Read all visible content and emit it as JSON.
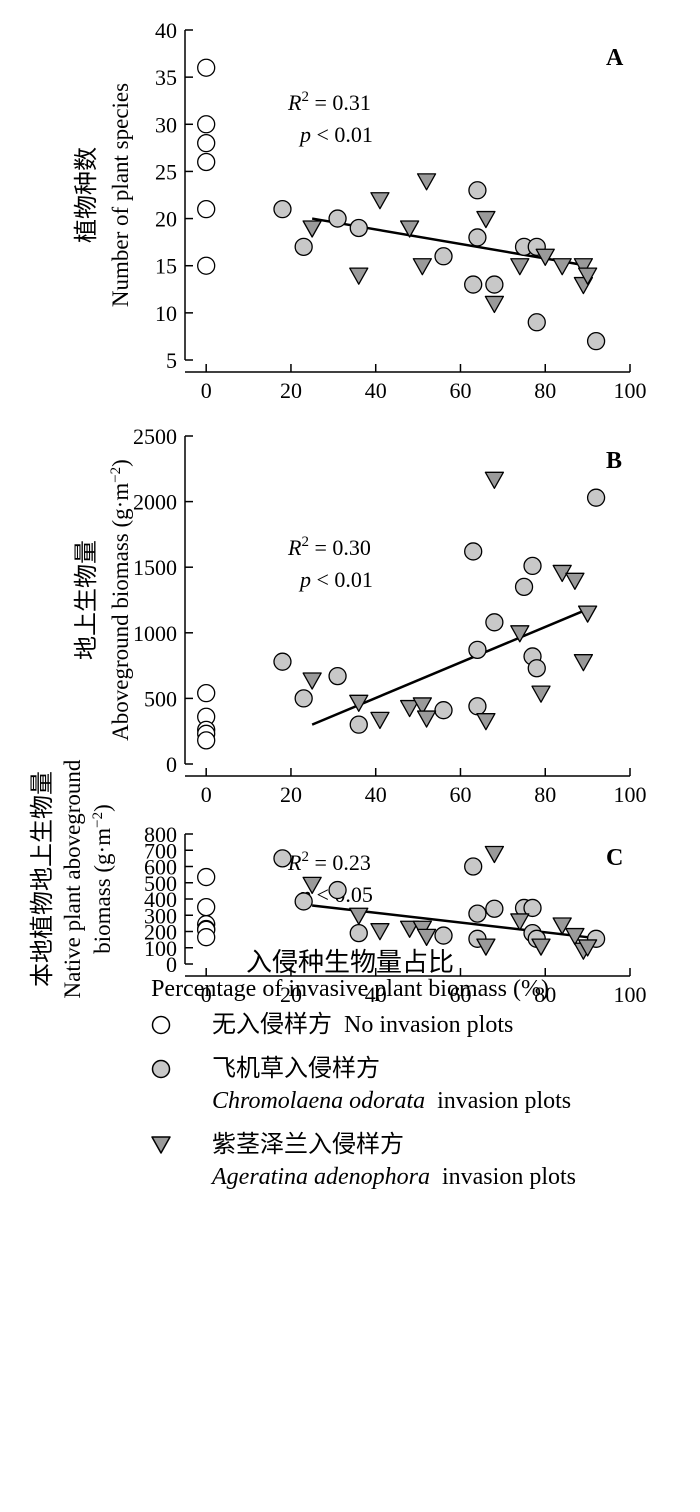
{
  "chart_data": [
    {
      "type": "scatter",
      "panel_label": "A",
      "ylabel_cn": "植物种数",
      "ylabel_en": "Number of plant species",
      "ylabel_en_sup": "",
      "ylim": [
        5,
        40
      ],
      "yticks": [
        5,
        10,
        15,
        20,
        25,
        30,
        35,
        40
      ],
      "xlim": [
        -5,
        100
      ],
      "xticks": [
        0,
        20,
        40,
        60,
        80,
        100
      ],
      "grid": false,
      "stat_r2": "= 0.31",
      "stat_p": "< 0.01",
      "fit_line": {
        "x": [
          25,
          90
        ],
        "y": [
          20,
          15
        ]
      },
      "series": [
        {
          "key": "none",
          "x": [
            0,
            0,
            0,
            0,
            0,
            0
          ],
          "y": [
            36,
            30,
            28,
            26,
            21,
            15
          ]
        },
        {
          "key": "chromolaena",
          "x": [
            18,
            23,
            31,
            36,
            56,
            63,
            64,
            64,
            68,
            75,
            78,
            78,
            92
          ],
          "y": [
            21,
            17,
            20,
            19,
            16,
            13,
            23,
            18,
            13,
            17,
            17,
            9,
            7
          ]
        },
        {
          "key": "ageratina",
          "x": [
            25,
            36,
            41,
            48,
            51,
            52,
            66,
            68,
            74,
            80,
            84,
            89,
            89,
            90
          ],
          "y": [
            19,
            14,
            22,
            19,
            15,
            24,
            20,
            11,
            15,
            16,
            15,
            15,
            13,
            14
          ]
        }
      ]
    },
    {
      "type": "scatter",
      "panel_label": "B",
      "ylabel_cn": "地上生物量",
      "ylabel_en": "Aboveground biomass (g·m",
      "ylabel_en_sup": "−2",
      "ylim": [
        0,
        2500
      ],
      "yticks": [
        0,
        500,
        1000,
        1500,
        2000,
        2500
      ],
      "xlim": [
        -5,
        100
      ],
      "xticks": [
        0,
        20,
        40,
        60,
        80,
        100
      ],
      "grid": false,
      "stat_r2": "= 0.30",
      "stat_p": "< 0.01",
      "fit_line": {
        "x": [
          25,
          90
        ],
        "y": [
          300,
          1180
        ]
      },
      "series": [
        {
          "key": "none",
          "x": [
            0,
            0,
            0,
            0,
            0
          ],
          "y": [
            540,
            360,
            260,
            230,
            180
          ]
        },
        {
          "key": "chromolaena",
          "x": [
            18,
            23,
            31,
            36,
            56,
            63,
            64,
            64,
            68,
            75,
            77,
            77,
            78,
            92
          ],
          "y": [
            780,
            500,
            670,
            300,
            410,
            1620,
            870,
            440,
            1080,
            1350,
            1510,
            820,
            730,
            2030
          ]
        },
        {
          "key": "ageratina",
          "x": [
            25,
            36,
            41,
            48,
            51,
            52,
            66,
            68,
            74,
            79,
            84,
            87,
            89,
            90
          ],
          "y": [
            640,
            470,
            340,
            430,
            450,
            350,
            330,
            2170,
            1000,
            540,
            1460,
            1400,
            780,
            1150
          ]
        }
      ]
    },
    {
      "type": "scatter",
      "panel_label": "C",
      "ylabel_cn": "本地植物地上生物量",
      "ylabel_en": "Native plant aboveground",
      "ylabel_en2": "biomass (g·m",
      "ylabel_en_sup": "−2",
      "ylim": [
        0,
        800
      ],
      "yticks": [
        0,
        100,
        200,
        300,
        400,
        500,
        600,
        700,
        800
      ],
      "xlim": [
        -5,
        100
      ],
      "xticks": [
        0,
        20,
        40,
        60,
        80,
        100
      ],
      "grid": false,
      "stat_r2": "= 0.23",
      "stat_p": "< 0.05",
      "fit_line": {
        "x": [
          25,
          90
        ],
        "y": [
          360,
          165
        ]
      },
      "series": [
        {
          "key": "none",
          "x": [
            0,
            0,
            0,
            0,
            0,
            0
          ],
          "y": [
            535,
            350,
            245,
            215,
            210,
            165
          ]
        },
        {
          "key": "chromolaena",
          "x": [
            18,
            23,
            31,
            36,
            56,
            63,
            64,
            64,
            68,
            75,
            77,
            77,
            78,
            92
          ],
          "y": [
            650,
            385,
            455,
            190,
            175,
            600,
            310,
            155,
            340,
            345,
            345,
            190,
            155,
            155
          ]
        },
        {
          "key": "ageratina",
          "x": [
            25,
            36,
            41,
            48,
            51,
            52,
            66,
            68,
            74,
            79,
            84,
            87,
            89,
            90
          ],
          "y": [
            490,
            300,
            205,
            220,
            220,
            170,
            110,
            680,
            265,
            110,
            240,
            175,
            85,
            105
          ]
        }
      ]
    }
  ],
  "xlabel_cn": "入侵种生物量占比",
  "xlabel_en": "Percentage of invasive plant biomass (%)",
  "legend": {
    "none": {
      "cn": "无入侵样方",
      "en": "No invasion plots"
    },
    "chromolaena": {
      "cn": "飞机草入侵样方",
      "species": "Chromolaena odorata",
      "suffix": "invasion plots"
    },
    "ageratina": {
      "cn": "紫茎泽兰入侵样方",
      "species": "Ageratina adenophora",
      "suffix": "invasion plots"
    }
  },
  "colors": {
    "axis": "#000000",
    "marker_edge": "#000000",
    "chromolaena_fill": "#c8c8c8",
    "ageratina_fill": "#9a9a9a",
    "none_fill": "#ffffff",
    "fit_line": "#000000"
  }
}
